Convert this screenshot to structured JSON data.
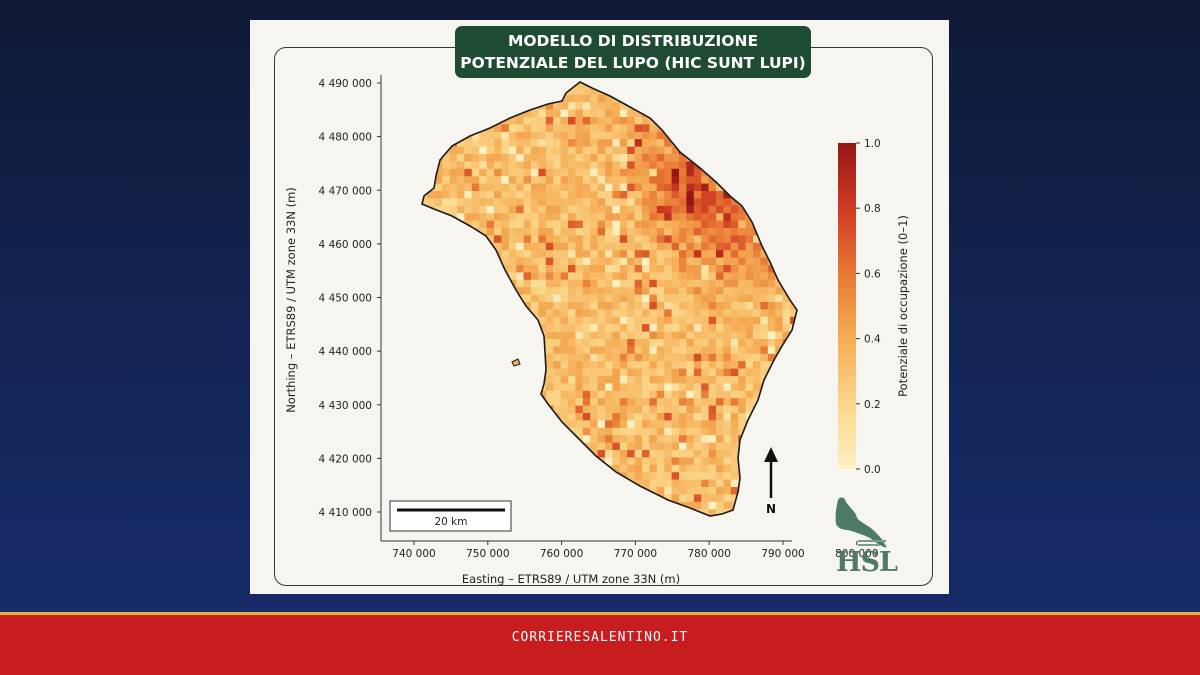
{
  "title": {
    "line1": "MODELLO DI DISTRIBUZIONE",
    "line2": "POTENZIALE DEL LUPO (HIC SUNT LUPI)"
  },
  "chart_data": {
    "type": "heatmap",
    "xlabel": "Easting – ETRS89 / UTM zone 33N (m)",
    "ylabel": "Northing – ETRS89 / UTM zone 33N (m)",
    "xlim": [
      735000,
      802000
    ],
    "ylim": [
      4405000,
      4497000
    ],
    "xticks": [
      "740 000",
      "750 000",
      "760 000",
      "770 000",
      "780 000",
      "790 000",
      "800 000"
    ],
    "xtick_values": [
      740000,
      750000,
      760000,
      770000,
      780000,
      790000,
      800000
    ],
    "yticks": [
      "4 490 000",
      "4 480 000",
      "4 470 000",
      "4 460 000",
      "4 450 000",
      "4 440 000",
      "4 430 000",
      "4 420 000",
      "4 410 000"
    ],
    "ytick_values": [
      4490000,
      4480000,
      4470000,
      4460000,
      4450000,
      4440000,
      4430000,
      4420000,
      4410000
    ],
    "colorbar": {
      "label": "Potenziale di occupazione (0–1)",
      "ticks": [
        "0.0",
        "0.2",
        "0.4",
        "0.6",
        "0.8",
        "1.0"
      ],
      "tick_values": [
        0,
        0.2,
        0.4,
        0.6,
        0.8,
        1.0
      ],
      "range": [
        0,
        1
      ],
      "colors": [
        "#fdf1c4",
        "#fbd68a",
        "#f5ad55",
        "#e87834",
        "#cf3a22",
        "#961616"
      ]
    },
    "grid": false,
    "scale_bar": "20 km",
    "north_arrow": "N",
    "boundary_color": "#1a1a1a"
  },
  "logo": {
    "text": "HSL",
    "color": "#4e7b68"
  },
  "footer": {
    "text": "CORRIERESALENTINO.IT"
  }
}
